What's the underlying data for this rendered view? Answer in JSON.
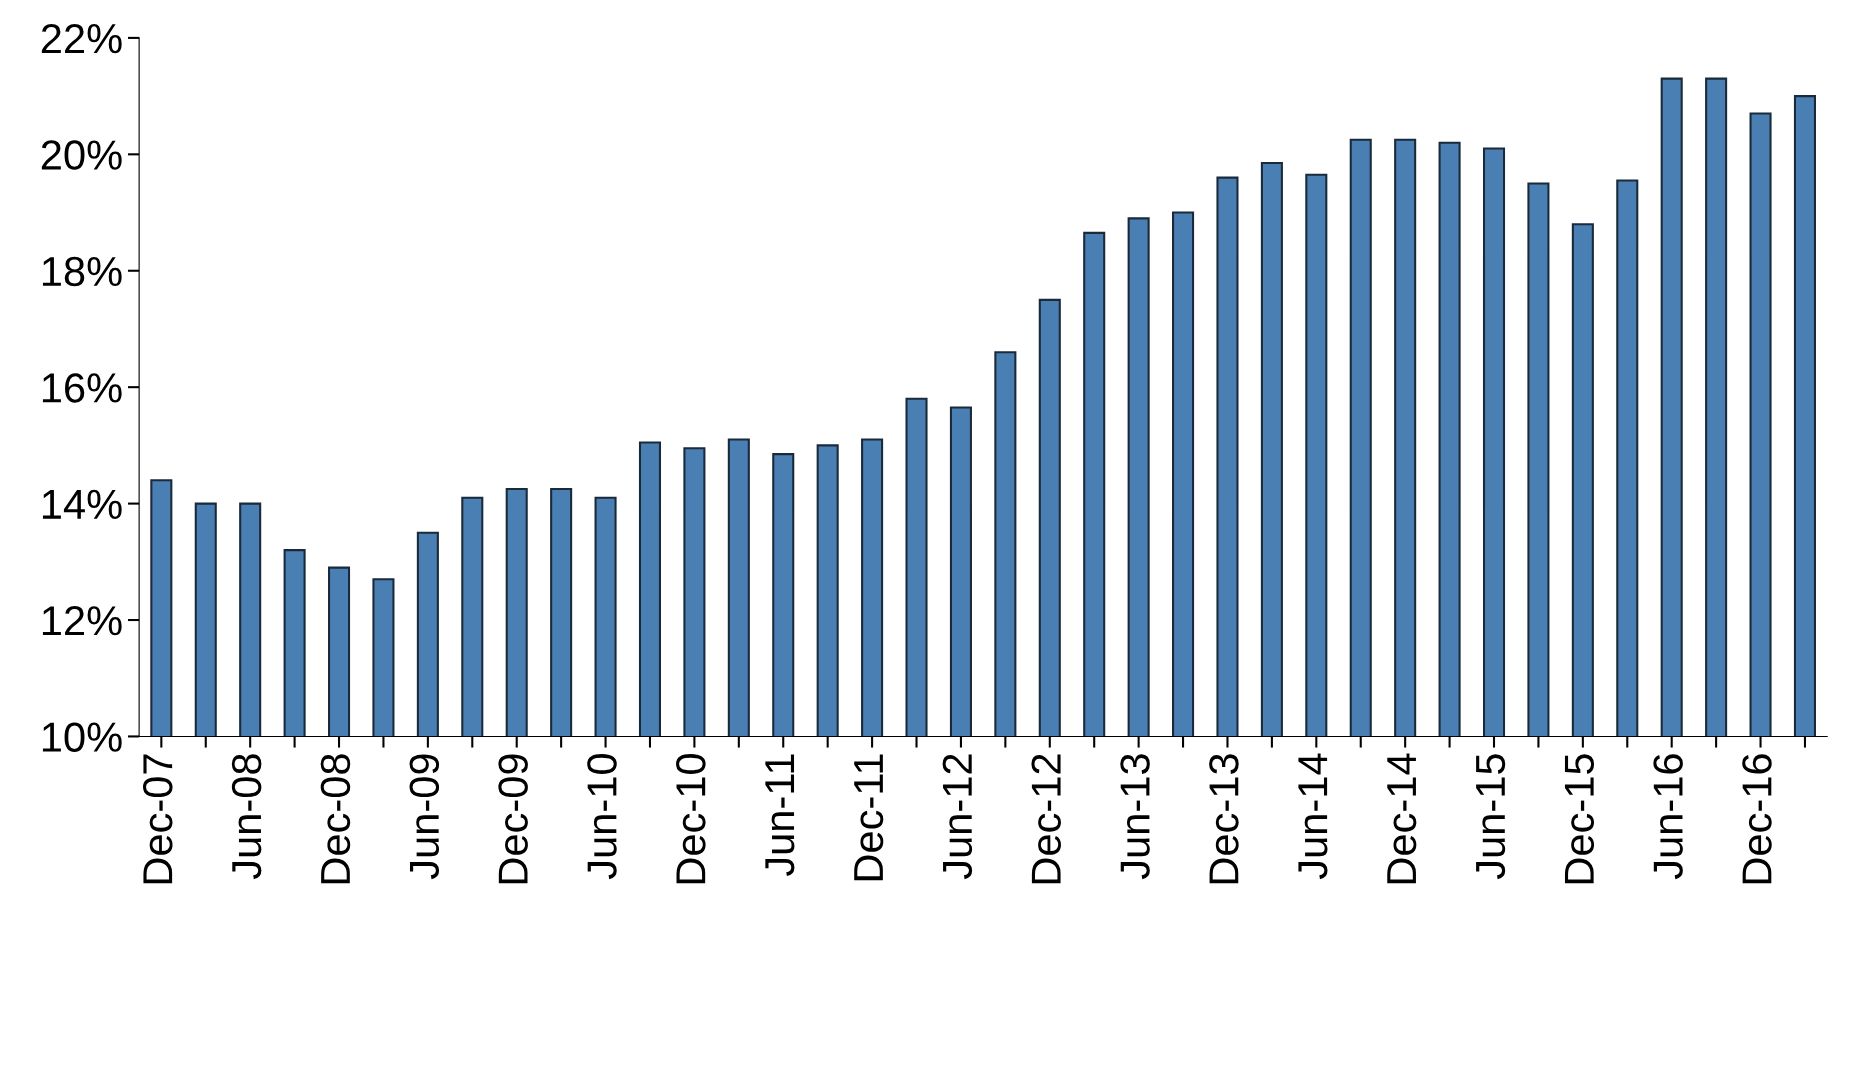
{
  "chart_data": {
    "type": "bar",
    "categories": [
      "Dec-07",
      null,
      "Jun-08",
      null,
      "Dec-08",
      null,
      "Jun-09",
      null,
      "Dec-09",
      null,
      "Jun-10",
      null,
      "Dec-10",
      null,
      "Jun-11",
      null,
      "Dec-11",
      null,
      "Jun-12",
      null,
      "Dec-12",
      null,
      "Jun-13",
      null,
      "Dec-13",
      null,
      "Jun-14",
      null,
      "Dec-14",
      null,
      "Jun-15",
      null,
      "Dec-15",
      null,
      "Jun-16",
      null,
      "Dec-16",
      null
    ],
    "values": [
      14.4,
      14.0,
      14.0,
      13.2,
      12.9,
      12.7,
      13.5,
      14.1,
      14.25,
      14.25,
      14.1,
      15.05,
      14.95,
      15.1,
      14.85,
      15.0,
      15.1,
      15.8,
      15.65,
      16.6,
      17.5,
      18.65,
      18.9,
      19.0,
      19.6,
      19.85,
      19.65,
      20.25,
      20.25,
      20.2,
      20.1,
      19.5,
      18.8,
      19.55,
      21.3,
      21.3,
      20.7,
      21.0
    ],
    "color": "#4a7fb3",
    "ylim": [
      10,
      22
    ],
    "yticks": [
      {
        "value": 10,
        "label": "10%"
      },
      {
        "value": 12,
        "label": "12%"
      },
      {
        "value": 14,
        "label": "14%"
      },
      {
        "value": 16,
        "label": "16%"
      },
      {
        "value": 18,
        "label": "18%"
      },
      {
        "value": 20,
        "label": "20%"
      },
      {
        "value": 22,
        "label": "22%"
      }
    ],
    "grid": false
  }
}
